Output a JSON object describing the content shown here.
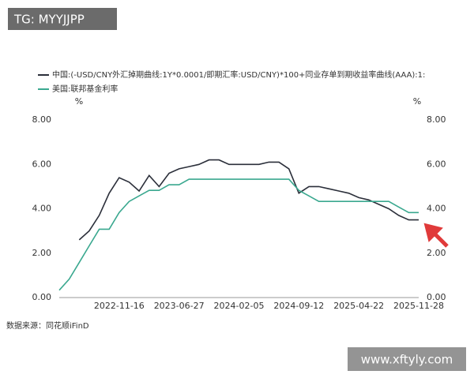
{
  "badge": "TG: MYYJJPP",
  "source": "数据来源：同花顺iFinD",
  "watermark": "www.xftyly.com",
  "chart_data": {
    "type": "line",
    "categories": [
      null,
      null,
      null,
      null,
      null,
      null,
      "2022-11-16",
      null,
      null,
      null,
      null,
      null,
      "2023-06-27",
      null,
      null,
      null,
      null,
      null,
      "2024-02-05",
      null,
      null,
      null,
      null,
      null,
      "2024-09-12",
      null,
      null,
      null,
      null,
      null,
      "2025-04-22",
      null,
      null,
      null,
      null,
      null,
      "2025-11-28"
    ],
    "y_label": "%",
    "y2_label": "%",
    "ylim": [
      0,
      8
    ],
    "yticks": [
      {
        "value": 0,
        "label": "0.00"
      },
      {
        "value": 2,
        "label": "2.00"
      },
      {
        "value": 4,
        "label": "4.00"
      },
      {
        "value": 6,
        "label": "6.00"
      },
      {
        "value": 8,
        "label": "8.00"
      }
    ],
    "y2lim": [
      0,
      8
    ],
    "y2ticks": [
      {
        "value": 0,
        "label": "0.00"
      },
      {
        "value": 2,
        "label": "2.00"
      },
      {
        "value": 4,
        "label": "4.00"
      },
      {
        "value": 6,
        "label": "6.00"
      },
      {
        "value": 8,
        "label": "8.00"
      }
    ],
    "series": [
      {
        "name": "中国:(-USD/CNY外汇掉期曲线:1Y*0.0001/即期汇率:USD/CNY)*100+同业存单到期收益率曲线(AAA):1:",
        "color": "#2b2f3a",
        "values": [
          null,
          null,
          2.6,
          3.0,
          3.7,
          4.7,
          5.4,
          5.2,
          4.8,
          5.5,
          5.0,
          5.6,
          5.8,
          5.9,
          6.0,
          6.2,
          6.2,
          6.0,
          6.0,
          6.0,
          6.0,
          6.1,
          6.1,
          5.8,
          4.7,
          5.0,
          5.0,
          4.9,
          4.8,
          4.7,
          4.5,
          4.4,
          4.2,
          4.0,
          3.7,
          3.5,
          3.5
        ]
      },
      {
        "name": "美国:联邦基金利率",
        "color": "#3aa88f",
        "axis": "y2",
        "values": [
          0.33,
          0.83,
          1.58,
          2.33,
          3.08,
          3.08,
          3.83,
          4.33,
          4.58,
          4.83,
          4.83,
          5.08,
          5.08,
          5.33,
          5.33,
          5.33,
          5.33,
          5.33,
          5.33,
          5.33,
          5.33,
          5.33,
          5.33,
          5.33,
          4.83,
          4.58,
          4.33,
          4.33,
          4.33,
          4.33,
          4.33,
          4.33,
          4.33,
          4.33,
          4.08,
          3.83,
          3.83
        ]
      }
    ]
  }
}
